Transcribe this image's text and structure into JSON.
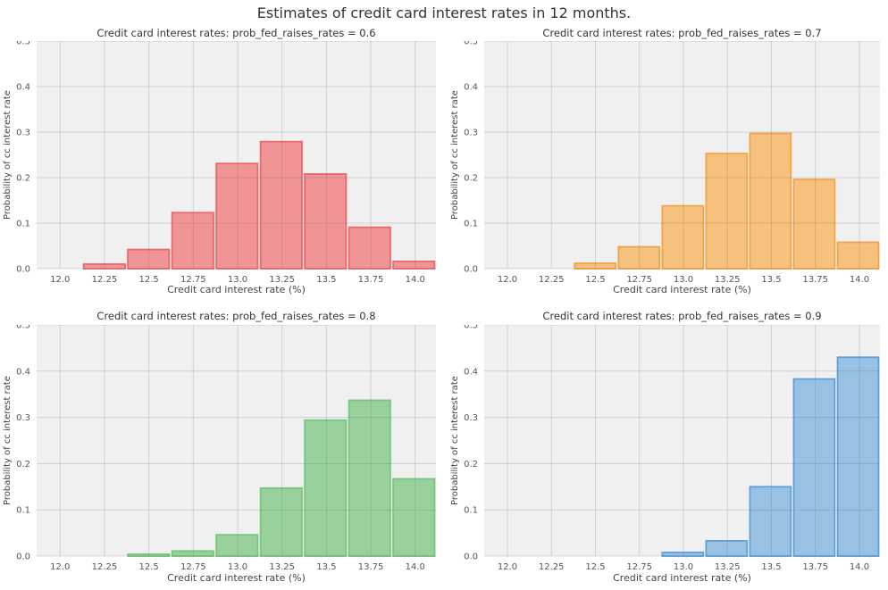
{
  "figure": {
    "title": "Estimates of credit card interest rates in 12 months.",
    "plot_background_color": "#F0F0F0",
    "gridline_color": "#CCCCCC",
    "text_color": "#333333"
  },
  "chart_data": [
    {
      "type": "bar",
      "subtype": "histogram",
      "title": "Credit card interest rates: prob_fed_raises_rates = 0.6",
      "xlabel": "Credit card interest rate (%)",
      "ylabel": "Probability of cc interest rate",
      "prob_fed_raises_rates": 0.6,
      "bins_start": 12.125,
      "bin_width": 0.249,
      "probabilities": [
        0.01,
        0.042,
        0.123,
        0.231,
        0.279,
        0.208,
        0.091,
        0.016
      ],
      "xlim": [
        11.868,
        14.117
      ],
      "ylim": [
        0.0,
        0.5
      ],
      "xtick_values": [
        12.0,
        12.25,
        12.5,
        12.75,
        13.0,
        13.25,
        13.5,
        13.75,
        14.0
      ],
      "xtick_labels": [
        "12.0",
        "12.25",
        "12.5",
        "12.75",
        "13.0",
        "13.25",
        "13.5",
        "13.75",
        "14.0"
      ],
      "ytick_values": [
        0.0,
        0.1,
        0.2,
        0.3,
        0.4,
        0.5
      ],
      "ytick_labels": [
        "0.0",
        "0.1",
        "0.2",
        "0.3",
        "0.4",
        "0.5"
      ],
      "grid": true,
      "legend": false,
      "fill_color": "#F19495",
      "edge_color": "#E9696C"
    },
    {
      "type": "bar",
      "subtype": "histogram",
      "title": "Credit card interest rates: prob_fed_raises_rates = 0.7",
      "xlabel": "Credit card interest rate (%)",
      "ylabel": "Probability of cc interest rate",
      "prob_fed_raises_rates": 0.7,
      "bins_start": 12.374,
      "bin_width": 0.249,
      "probabilities": [
        0.012,
        0.048,
        0.138,
        0.253,
        0.297,
        0.196,
        0.058
      ],
      "xlim": [
        11.868,
        14.117
      ],
      "ylim": [
        0.0,
        0.5
      ],
      "xtick_values": [
        12.0,
        12.25,
        12.5,
        12.75,
        13.0,
        13.25,
        13.5,
        13.75,
        14.0
      ],
      "xtick_labels": [
        "12.0",
        "12.25",
        "12.5",
        "12.75",
        "13.0",
        "13.25",
        "13.5",
        "13.75",
        "14.0"
      ],
      "ytick_values": [
        0.0,
        0.1,
        0.2,
        0.3,
        0.4,
        0.5
      ],
      "ytick_labels": [
        "0.0",
        "0.1",
        "0.2",
        "0.3",
        "0.4",
        "0.5"
      ],
      "grid": true,
      "legend": false,
      "fill_color": "#F6C07D",
      "edge_color": "#F0A54B"
    },
    {
      "type": "bar",
      "subtype": "histogram",
      "title": "Credit card interest rates: prob_fed_raises_rates = 0.8",
      "xlabel": "Credit card interest rate (%)",
      "ylabel": "Probability of cc interest rate",
      "prob_fed_raises_rates": 0.8,
      "bins_start": 12.374,
      "bin_width": 0.249,
      "probabilities": [
        0.004,
        0.011,
        0.046,
        0.147,
        0.294,
        0.337,
        0.167
      ],
      "xlim": [
        11.868,
        14.117
      ],
      "ylim": [
        0.0,
        0.5
      ],
      "xtick_values": [
        12.0,
        12.25,
        12.5,
        12.75,
        13.0,
        13.25,
        13.5,
        13.75,
        14.0
      ],
      "xtick_labels": [
        "12.0",
        "12.25",
        "12.5",
        "12.75",
        "13.0",
        "13.25",
        "13.5",
        "13.75",
        "14.0"
      ],
      "ytick_values": [
        0.0,
        0.1,
        0.2,
        0.3,
        0.4,
        0.5
      ],
      "ytick_labels": [
        "0.0",
        "0.1",
        "0.2",
        "0.3",
        "0.4",
        "0.5"
      ],
      "grid": true,
      "legend": false,
      "fill_color": "#99D19D",
      "edge_color": "#79C67F"
    },
    {
      "type": "bar",
      "subtype": "histogram",
      "title": "Credit card interest rates: prob_fed_raises_rates = 0.9",
      "xlabel": "Credit card interest rate (%)",
      "ylabel": "Probability of cc interest rate",
      "prob_fed_raises_rates": 0.9,
      "bins_start": 12.872,
      "bin_width": 0.249,
      "probabilities": [
        0.008,
        0.033,
        0.15,
        0.383,
        0.43
      ],
      "xlim": [
        11.868,
        14.117
      ],
      "ylim": [
        0.0,
        0.5
      ],
      "xtick_values": [
        12.0,
        12.25,
        12.5,
        12.75,
        13.0,
        13.25,
        13.5,
        13.75,
        14.0
      ],
      "xtick_labels": [
        "12.0",
        "12.25",
        "12.5",
        "12.75",
        "13.0",
        "13.25",
        "13.5",
        "13.75",
        "14.0"
      ],
      "ytick_values": [
        0.0,
        0.1,
        0.2,
        0.3,
        0.4,
        0.5
      ],
      "ytick_labels": [
        "0.0",
        "0.1",
        "0.2",
        "0.3",
        "0.4",
        "0.5"
      ],
      "grid": true,
      "legend": false,
      "fill_color": "#98C1E4",
      "edge_color": "#5FA2DA"
    }
  ]
}
